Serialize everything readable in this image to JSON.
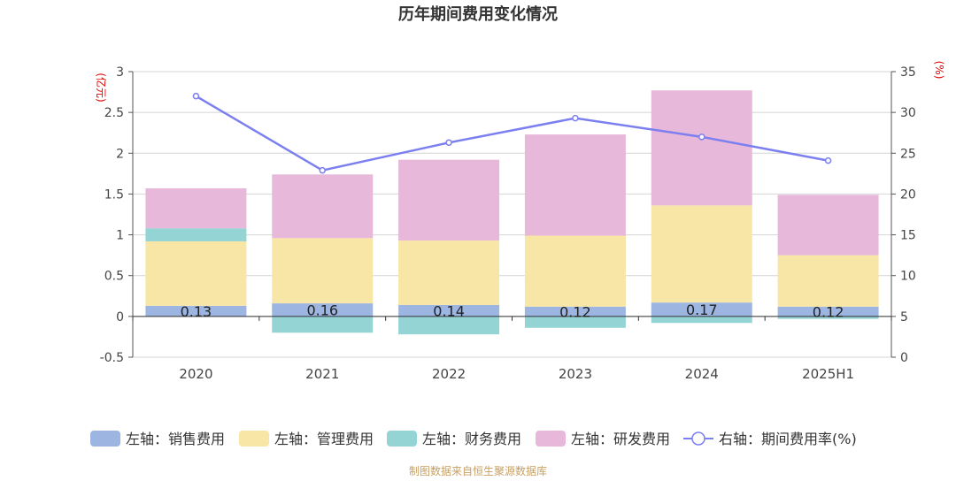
{
  "chart_data": {
    "type": "bar",
    "title": "历年期间费用变化情况",
    "y_left_unit": "(亿元)",
    "y_right_unit": "(%)",
    "categories": [
      "2020",
      "2021",
      "2022",
      "2023",
      "2024",
      "2025H1"
    ],
    "y_left_lim": [
      -0.5,
      3
    ],
    "y_left_ticks": [
      "3",
      "2.5",
      "2",
      "1.5",
      "1",
      "0.5",
      "0",
      "-0.5"
    ],
    "y_right_lim": [
      0,
      35
    ],
    "y_right_ticks": [
      "35",
      "30",
      "25",
      "20",
      "15",
      "10",
      "5",
      "0"
    ],
    "grid": true,
    "legend_position": "bottom",
    "series": [
      {
        "name": "左轴：销售费用",
        "type": "bar",
        "color": "#9cb5e1",
        "values": [
          0.13,
          0.16,
          0.14,
          0.12,
          0.17,
          0.12
        ],
        "labels": [
          "0.13",
          "0.16",
          "0.14",
          "0.12",
          "0.17",
          "0.12"
        ]
      },
      {
        "name": "左轴：管理费用",
        "type": "bar",
        "color": "#f8e6a7",
        "values": [
          0.79,
          0.8,
          0.79,
          0.87,
          1.19,
          0.63
        ]
      },
      {
        "name": "左轴：财务费用",
        "type": "bar",
        "color": "#95d4d4",
        "values": [
          0.16,
          -0.2,
          -0.22,
          -0.14,
          -0.08,
          -0.03
        ]
      },
      {
        "name": "左轴：研发费用",
        "type": "bar",
        "color": "#e8b8da",
        "values": [
          0.49,
          0.78,
          0.99,
          1.24,
          1.41,
          0.74
        ]
      },
      {
        "name": "右轴：期间费用率(%)",
        "type": "line",
        "color": "#7b7ff0",
        "values": [
          32.0,
          22.9,
          26.3,
          29.3,
          27.0,
          24.1
        ]
      }
    ]
  },
  "footer": {
    "source": "制图数据来自恒生聚源数据库"
  }
}
